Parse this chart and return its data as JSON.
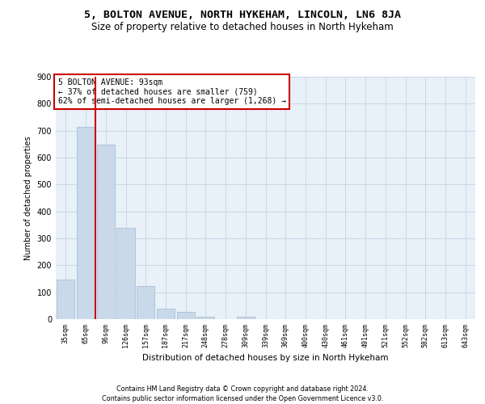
{
  "title": "5, BOLTON AVENUE, NORTH HYKEHAM, LINCOLN, LN6 8JA",
  "subtitle": "Size of property relative to detached houses in North Hykeham",
  "xlabel": "Distribution of detached houses by size in North Hykeham",
  "ylabel": "Number of detached properties",
  "categories": [
    "35sqm",
    "65sqm",
    "96sqm",
    "126sqm",
    "157sqm",
    "187sqm",
    "217sqm",
    "248sqm",
    "278sqm",
    "309sqm",
    "339sqm",
    "369sqm",
    "400sqm",
    "430sqm",
    "461sqm",
    "491sqm",
    "521sqm",
    "552sqm",
    "582sqm",
    "613sqm",
    "643sqm"
  ],
  "values": [
    148,
    714,
    649,
    340,
    124,
    38,
    28,
    10,
    0,
    8,
    0,
    0,
    0,
    0,
    0,
    0,
    0,
    0,
    0,
    0,
    0
  ],
  "bar_color": "#c9d9ea",
  "bar_edge_color": "#a0b8d0",
  "vline_x_index": 1.5,
  "vline_color": "#cc0000",
  "annotation_text": "5 BOLTON AVENUE: 93sqm\n← 37% of detached houses are smaller (759)\n62% of semi-detached houses are larger (1,268) →",
  "annotation_box_color": "#ffffff",
  "annotation_box_edge": "#cc0000",
  "ylim": [
    0,
    900
  ],
  "yticks": [
    0,
    100,
    200,
    300,
    400,
    500,
    600,
    700,
    800,
    900
  ],
  "grid_color": "#c8d8e8",
  "background_color": "#e8f0f8",
  "footer_line1": "Contains HM Land Registry data © Crown copyright and database right 2024.",
  "footer_line2": "Contains public sector information licensed under the Open Government Licence v3.0.",
  "title_fontsize": 9.5,
  "subtitle_fontsize": 8.5,
  "annotation_fontsize": 7,
  "ylabel_fontsize": 7,
  "xlabel_fontsize": 7.5,
  "ytick_fontsize": 7,
  "xtick_fontsize": 6,
  "footer_fontsize": 5.8
}
